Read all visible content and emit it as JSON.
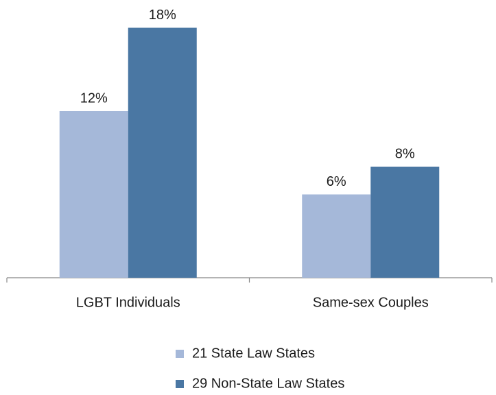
{
  "chart_data": {
    "type": "bar",
    "categories": [
      "LGBT Individuals",
      "Same-sex Couples"
    ],
    "series": [
      {
        "name": "21 State Law States",
        "color": "#a5b8d9",
        "values": [
          12,
          6
        ],
        "value_labels": [
          "12%",
          "6%"
        ]
      },
      {
        "name": "29 Non-State Law States",
        "color": "#4a77a3",
        "values": [
          18,
          8
        ],
        "value_labels": [
          "18%",
          "8%"
        ]
      }
    ],
    "ylim": [
      0,
      20
    ],
    "legend": "bottom"
  }
}
